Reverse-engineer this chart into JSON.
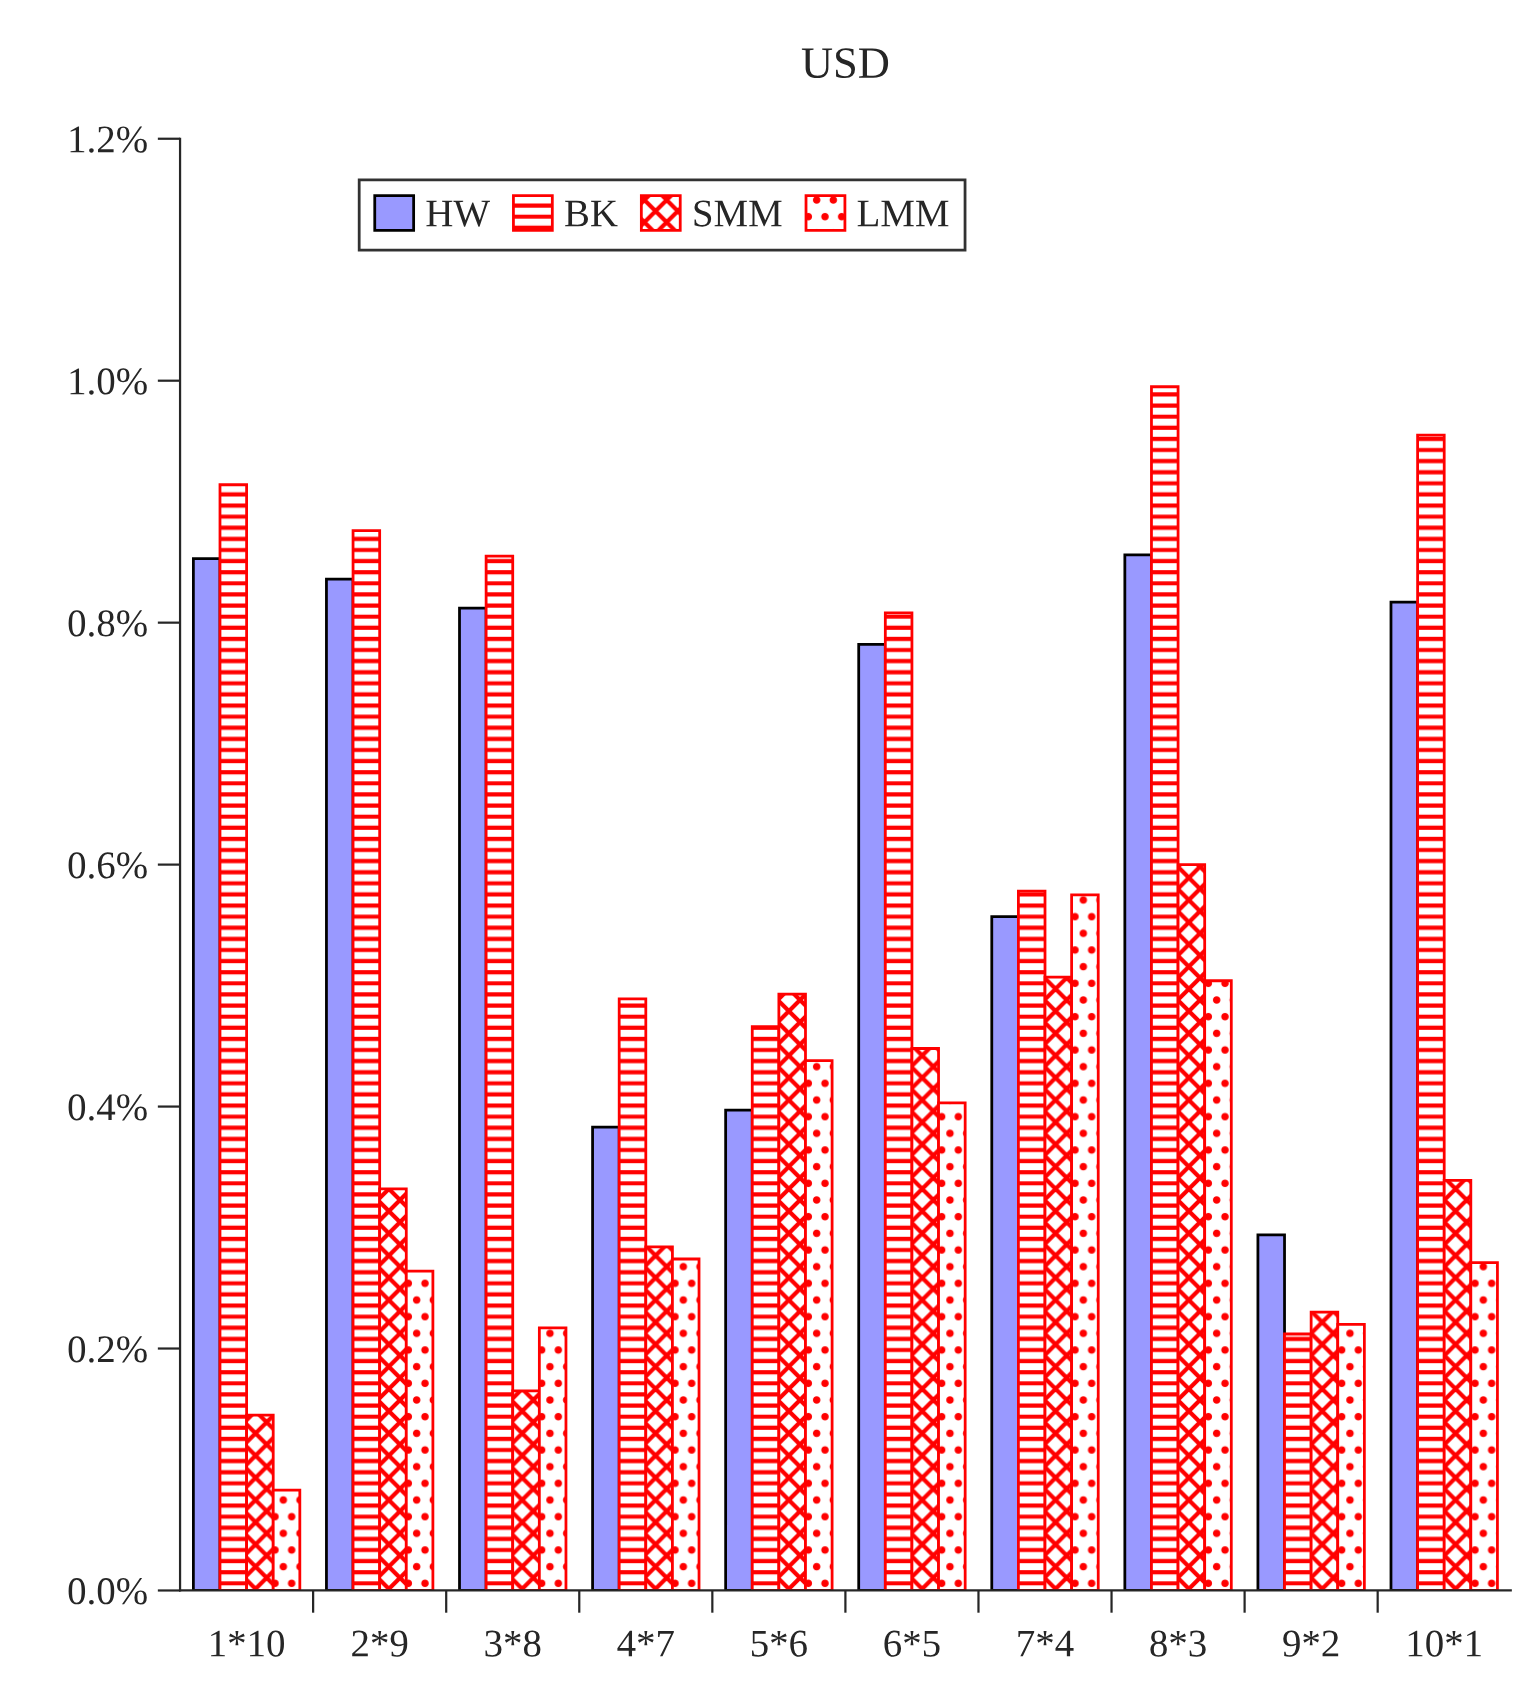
{
  "chart_data": {
    "type": "bar",
    "title": "USD",
    "categories": [
      "1*10",
      "2*9",
      "3*8",
      "4*7",
      "5*6",
      "6*5",
      "7*4",
      "8*3",
      "9*2",
      "10*1"
    ],
    "series": [
      {
        "name": "HW",
        "color": "#9999ff",
        "values": [
          0.853,
          0.836,
          0.812,
          0.383,
          0.397,
          0.782,
          0.557,
          0.856,
          0.294,
          0.817
        ]
      },
      {
        "name": "BK",
        "color": "#ff0000",
        "values": [
          0.914,
          0.876,
          0.855,
          0.489,
          0.466,
          0.808,
          0.578,
          0.995,
          0.212,
          0.955
        ]
      },
      {
        "name": "SMM",
        "color": "#ff0000",
        "values": [
          0.145,
          0.332,
          0.165,
          0.284,
          0.493,
          0.448,
          0.507,
          0.6,
          0.23,
          0.339
        ]
      },
      {
        "name": "LMM",
        "color": "#ff0000",
        "values": [
          0.083,
          0.264,
          0.217,
          0.274,
          0.438,
          0.403,
          0.575,
          0.504,
          0.22,
          0.271
        ]
      }
    ],
    "ylim": [
      0,
      1.2
    ],
    "yticks": [
      {
        "value": 0,
        "label": "0.0%"
      },
      {
        "value": 0.2,
        "label": "0.2%"
      },
      {
        "value": 0.4,
        "label": "0.4%"
      },
      {
        "value": 0.6,
        "label": "0.6%"
      },
      {
        "value": 0.8,
        "label": "0.8%"
      },
      {
        "value": 1.0,
        "label": "1.0%"
      },
      {
        "value": 1.2,
        "label": "1.2%"
      }
    ],
    "grid": false,
    "legend": "top"
  }
}
